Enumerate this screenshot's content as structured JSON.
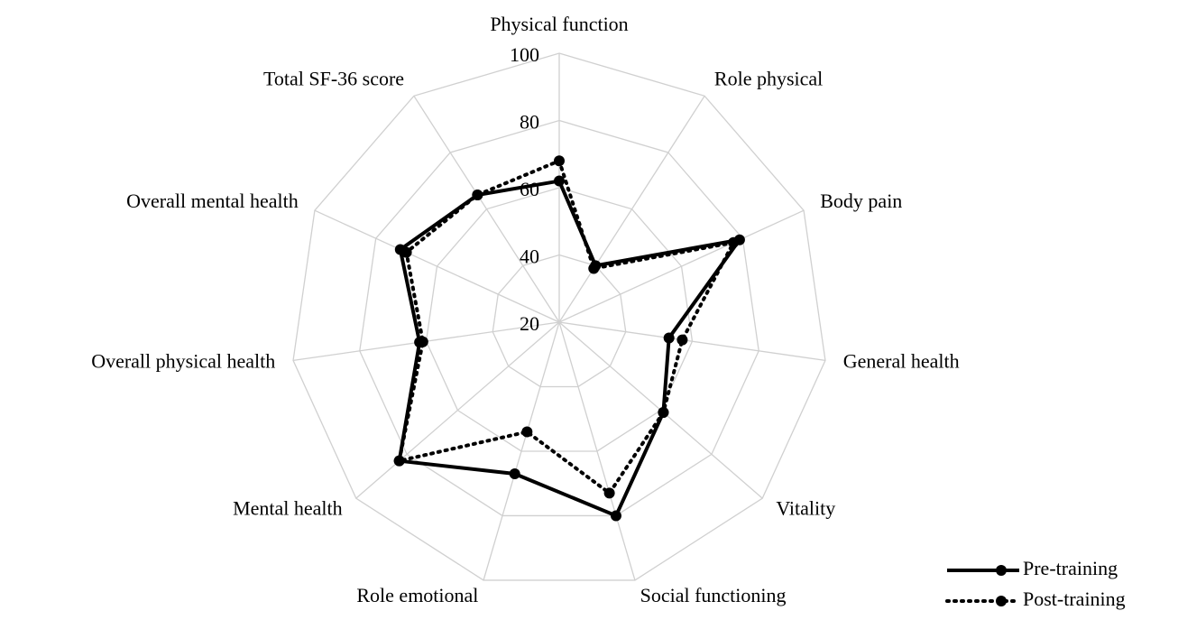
{
  "chart_data": {
    "type": "radar",
    "categories": [
      "Physical function",
      "Role physical",
      "Body pain",
      "General health",
      "Vitality",
      "Social functioning",
      "Role emotional",
      "Mental health",
      "Overall physical health",
      "Overall mental health",
      "Total SF-36 score"
    ],
    "series": [
      {
        "name": "Pre-training",
        "color": "#000000",
        "dash": "solid",
        "values": [
          62,
          40,
          79,
          53,
          61,
          80,
          67,
          83,
          62,
          72,
          65
        ]
      },
      {
        "name": "Post-training",
        "color": "#000000",
        "dash": "dotted",
        "values": [
          68,
          39,
          77,
          57,
          61,
          73,
          54,
          83,
          61,
          70,
          65
        ]
      }
    ],
    "ylim": [
      20,
      100
    ],
    "yticks": [
      20,
      40,
      60,
      80,
      100
    ],
    "grid": true,
    "legend": "lower right"
  }
}
